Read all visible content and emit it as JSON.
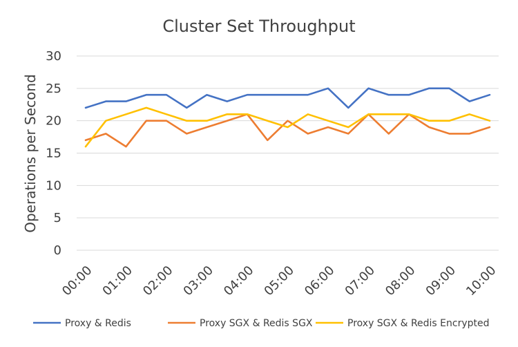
{
  "chart_data": {
    "type": "line",
    "title": "Cluster Set Throughput",
    "xlabel": "",
    "ylabel": "Operations per Second",
    "ylim": [
      0,
      30
    ],
    "yticks": [
      0,
      5,
      10,
      15,
      20,
      25,
      30
    ],
    "xlim": [
      0,
      10
    ],
    "xticks": [
      "00:00",
      "01:00",
      "02:00",
      "03:00",
      "04:00",
      "05:00",
      "06:00",
      "07:00",
      "08:00",
      "09:00",
      "10:00"
    ],
    "x": [
      0,
      0.5,
      1,
      1.5,
      2,
      2.5,
      3,
      3.5,
      4,
      4.5,
      5,
      5.5,
      6,
      6.5,
      7,
      7.5,
      8,
      8.5,
      9,
      9.5,
      10
    ],
    "grid": true,
    "legend_position": "bottom",
    "series": [
      {
        "name": "Proxy & Redis",
        "color": "#4472C4",
        "values": [
          22,
          23,
          23,
          24,
          24,
          22,
          24,
          23,
          24,
          24,
          24,
          24,
          25,
          22,
          25,
          24,
          24,
          25,
          25,
          23,
          24
        ]
      },
      {
        "name": "Proxy SGX & Redis SGX",
        "color": "#ED7D31",
        "values": [
          17,
          18,
          16,
          20,
          20,
          18,
          19,
          20,
          21,
          17,
          20,
          18,
          19,
          18,
          21,
          18,
          21,
          19,
          18,
          18,
          19
        ]
      },
      {
        "name": "Proxy SGX & Redis Encrypted",
        "color": "#FFC000",
        "values": [
          16,
          20,
          21,
          22,
          21,
          20,
          20,
          21,
          21,
          20,
          19,
          21,
          20,
          19,
          21,
          21,
          21,
          20,
          20,
          21,
          20
        ]
      }
    ]
  }
}
